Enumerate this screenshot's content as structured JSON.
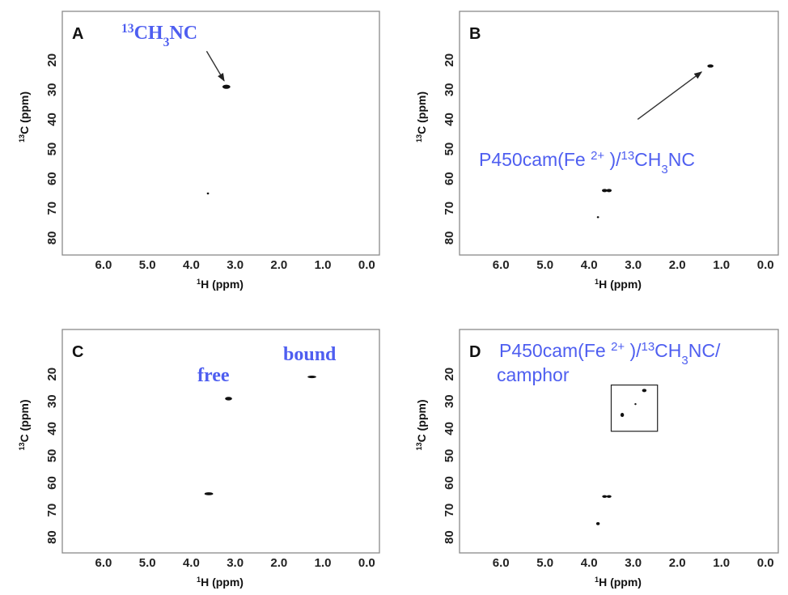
{
  "chart_data": [
    {
      "panel": "A",
      "type": "scatter",
      "xlabel": "1H (ppm)",
      "ylabel": "13C (ppm)",
      "xlim": [
        6.0,
        0.0
      ],
      "ylim": [
        80,
        10
      ],
      "xticks": [
        "6.0",
        "5.0",
        "4.0",
        "3.0",
        "2.0",
        "1.0",
        "0.0"
      ],
      "yticks": [
        "20",
        "30",
        "40",
        "50",
        "60",
        "70",
        "80"
      ],
      "peaks": [
        {
          "x": 3.2,
          "y": 29,
          "w": 0.18,
          "h": 1.4
        },
        {
          "x": 3.62,
          "y": 65,
          "w": 0.05,
          "h": 0.4
        }
      ],
      "annotations": [
        {
          "text": "13CH3NC",
          "style": "serif",
          "arrow_from": [
            3.65,
            17
          ],
          "arrow_to": [
            3.25,
            27
          ]
        }
      ]
    },
    {
      "panel": "B",
      "type": "scatter",
      "xlabel": "1H (ppm)",
      "ylabel": "13C (ppm)",
      "xlim": [
        6.0,
        0.0
      ],
      "ylim": [
        80,
        10
      ],
      "xticks": [
        "6.0",
        "5.0",
        "4.0",
        "3.0",
        "2.0",
        "1.0",
        "0.0"
      ],
      "yticks": [
        "20",
        "30",
        "40",
        "50",
        "60",
        "70",
        "80"
      ],
      "peaks": [
        {
          "x": 1.25,
          "y": 22,
          "w": 0.14,
          "h": 1.1
        },
        {
          "x": 3.65,
          "y": 64,
          "w": 0.12,
          "h": 1.1
        },
        {
          "x": 3.55,
          "y": 64,
          "w": 0.12,
          "h": 1.1
        },
        {
          "x": 3.8,
          "y": 73,
          "w": 0.05,
          "h": 0.5
        }
      ],
      "annotations": [
        {
          "text": "P450cam(Fe 2+ )/13CH3NC",
          "style": "sans",
          "arrow_from": [
            2.9,
            40
          ],
          "arrow_to": [
            1.45,
            24
          ]
        }
      ]
    },
    {
      "panel": "C",
      "type": "scatter",
      "xlabel": "1H (ppm)",
      "ylabel": "13C (ppm)",
      "xlim": [
        6.0,
        0.0
      ],
      "ylim": [
        80,
        10
      ],
      "xticks": [
        "6.0",
        "5.0",
        "4.0",
        "3.0",
        "2.0",
        "1.0",
        "0.0"
      ],
      "yticks": [
        "20",
        "30",
        "40",
        "50",
        "60",
        "70",
        "80"
      ],
      "peaks": [
        {
          "x": 3.15,
          "y": 29,
          "w": 0.16,
          "h": 1.3
        },
        {
          "x": 3.6,
          "y": 64,
          "w": 0.2,
          "h": 1.1
        },
        {
          "x": 1.25,
          "y": 21,
          "w": 0.2,
          "h": 0.9
        }
      ],
      "annotations": [
        {
          "text": "free",
          "style": "serif"
        },
        {
          "text": "bound",
          "style": "serif"
        }
      ]
    },
    {
      "panel": "D",
      "type": "scatter",
      "xlabel": "1H (ppm)",
      "ylabel": "13C (ppm)",
      "xlim": [
        6.0,
        0.0
      ],
      "ylim": [
        80,
        10
      ],
      "xticks": [
        "6.0",
        "5.0",
        "4.0",
        "3.0",
        "2.0",
        "1.0",
        "0.0"
      ],
      "yticks": [
        "20",
        "30",
        "40",
        "50",
        "60",
        "70",
        "80"
      ],
      "peaks": [
        {
          "x": 2.75,
          "y": 26,
          "w": 0.1,
          "h": 1.2
        },
        {
          "x": 3.25,
          "y": 35,
          "w": 0.08,
          "h": 1.5
        },
        {
          "x": 2.95,
          "y": 31,
          "w": 0.04,
          "h": 0.4
        },
        {
          "x": 3.65,
          "y": 65,
          "w": 0.11,
          "h": 1.0
        },
        {
          "x": 3.55,
          "y": 65,
          "w": 0.11,
          "h": 1.0
        },
        {
          "x": 3.8,
          "y": 75,
          "w": 0.08,
          "h": 1.1
        }
      ],
      "box": {
        "x1": 3.5,
        "x2": 2.45,
        "y1": 24,
        "y2": 41
      },
      "annotations": [
        {
          "text": "P450cam(Fe 2+ )/13CH3NC/",
          "style": "sans"
        },
        {
          "text": "camphor",
          "style": "sans"
        }
      ]
    }
  ]
}
